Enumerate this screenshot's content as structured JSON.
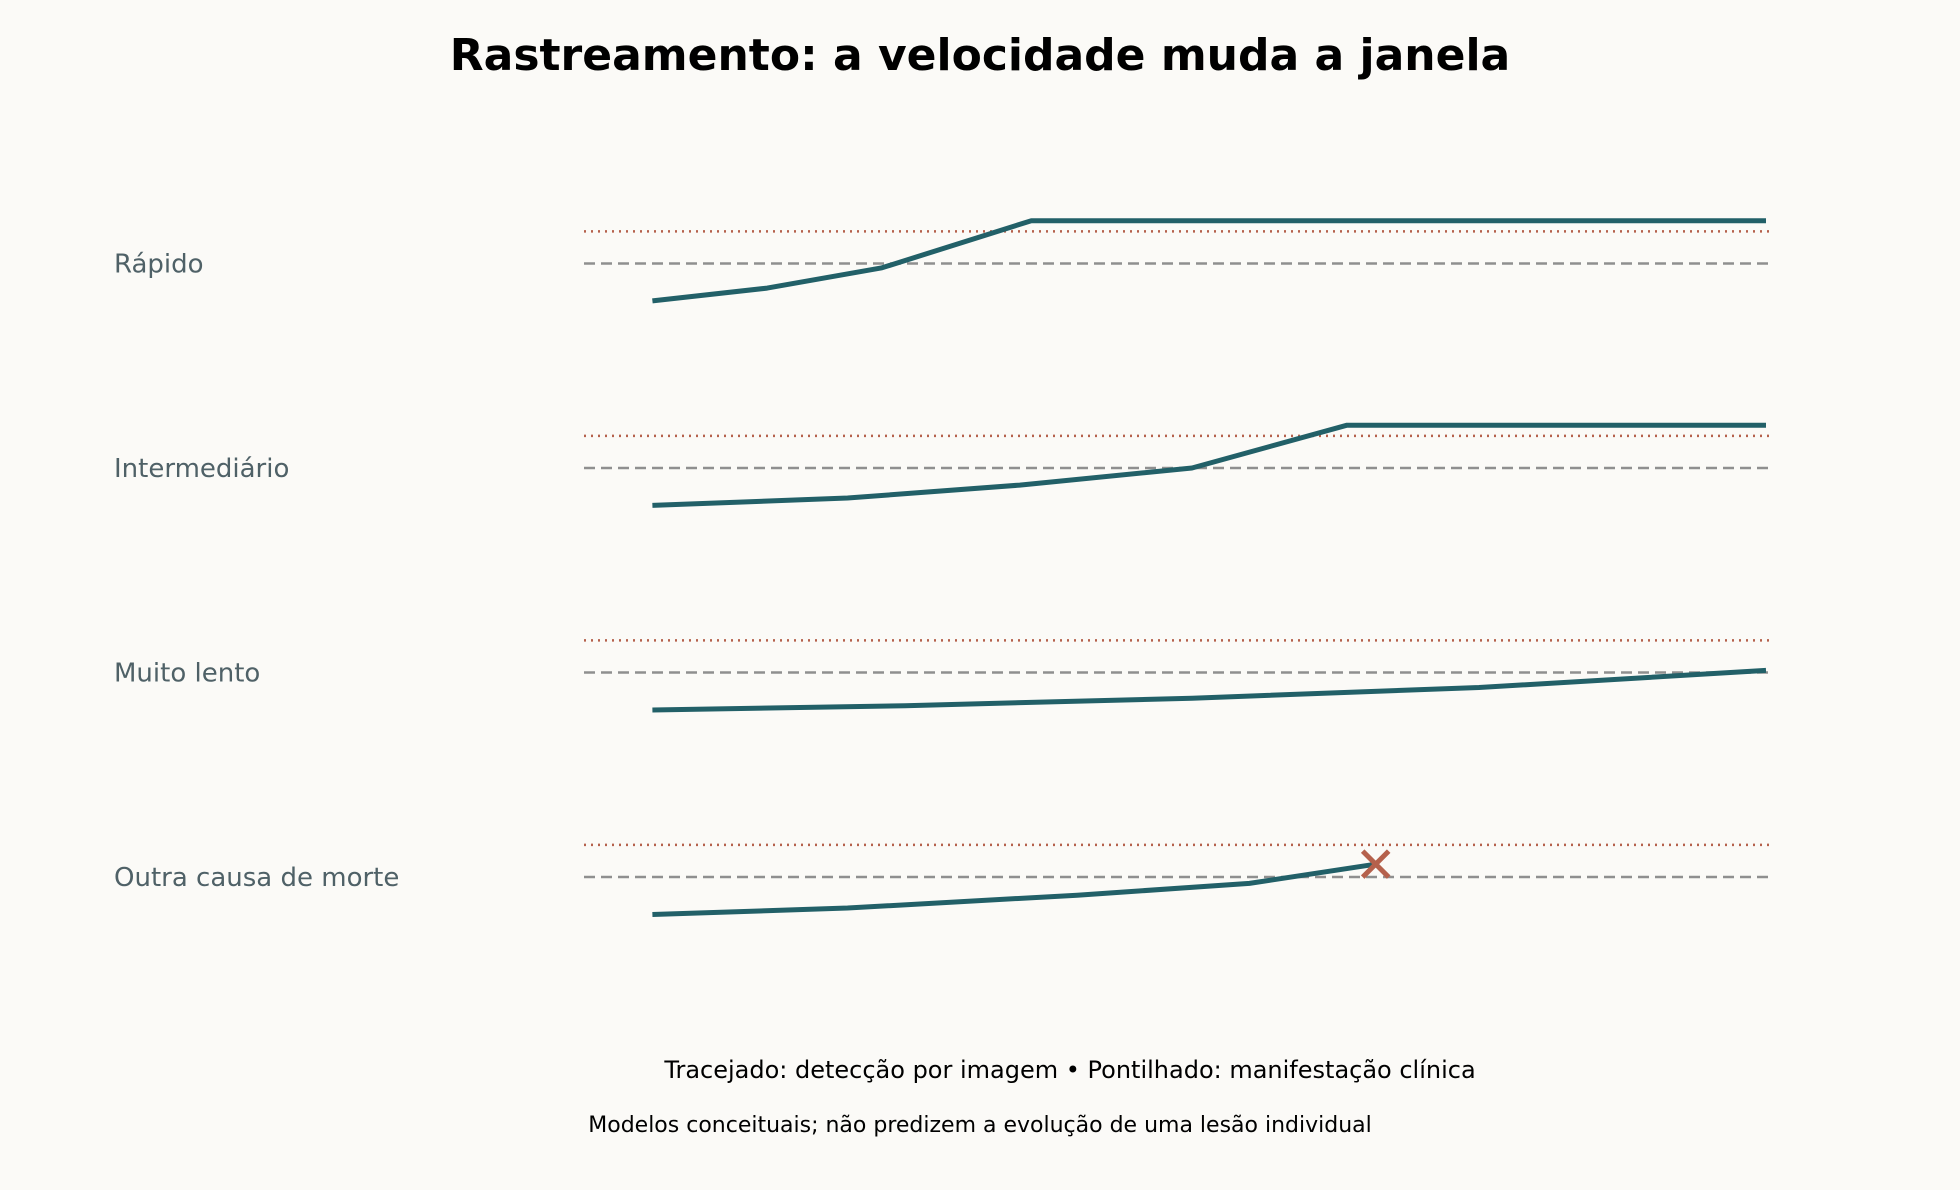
{
  "colors": {
    "background": "#fbfaf7",
    "accent": "#226068",
    "clinical": "#b5614c",
    "imaging": "#8f8f8f",
    "text": "#4f6167"
  },
  "title": "Rastreamento: a velocidade muda a janela",
  "notes": {
    "legend": "Tracejado: detecção por imagem • Pontilhado: manifestação clínica",
    "disclaimer": "Modelos conceituais; não predizem a evolução de uma lesão individual"
  },
  "chart_data": {
    "type": "line",
    "title": "Rastreamento: a velocidade muda a janela",
    "xlim": [
      0,
      1
    ],
    "ylim": [
      0,
      1
    ],
    "thresholds": {
      "imaging_detection": 0.5,
      "clinical_manifestation": 0.8
    },
    "grid": false,
    "rows": [
      {
        "label": "Rápido",
        "points": [
          [
            0.03,
            0.15
          ],
          [
            0.13,
            0.27
          ],
          [
            0.23,
            0.46
          ],
          [
            0.36,
            0.9
          ],
          [
            1.0,
            0.9
          ]
        ],
        "marker": null
      },
      {
        "label": "Intermediário",
        "points": [
          [
            0.03,
            0.15
          ],
          [
            0.2,
            0.22
          ],
          [
            0.35,
            0.34
          ],
          [
            0.5,
            0.5
          ],
          [
            0.635,
            0.9
          ],
          [
            1.0,
            0.9
          ]
        ],
        "marker": null
      },
      {
        "label": "Muito lento",
        "points": [
          [
            0.03,
            0.15
          ],
          [
            0.25,
            0.19
          ],
          [
            0.5,
            0.26
          ],
          [
            0.75,
            0.36
          ],
          [
            1.0,
            0.52
          ]
        ],
        "marker": null
      },
      {
        "label": "Outra causa de morte",
        "points": [
          [
            0.03,
            0.15
          ],
          [
            0.2,
            0.21
          ],
          [
            0.4,
            0.33
          ],
          [
            0.55,
            0.44
          ],
          [
            0.66,
            0.62
          ]
        ],
        "marker": {
          "type": "x",
          "x": 0.66,
          "y": 0.62
        }
      }
    ]
  }
}
